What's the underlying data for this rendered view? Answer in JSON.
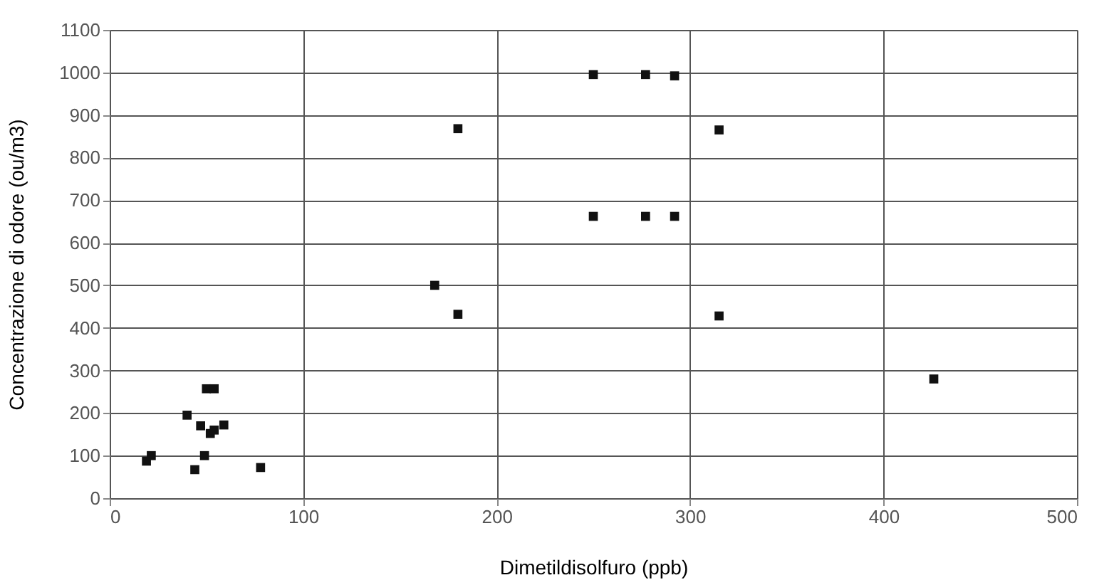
{
  "chart_data": {
    "type": "scatter",
    "xlabel": "Dimetildisolfuro (ppb)",
    "ylabel": "Concentrazione di odore (ou/m3)",
    "x": [
      19,
      21.5,
      40,
      44,
      47,
      49,
      50,
      54,
      52,
      54,
      59,
      78,
      168,
      180,
      180,
      250,
      250,
      277,
      277,
      292,
      292,
      315,
      315,
      426
    ],
    "series": [
      {
        "color": "#111111",
        "values": [
          87,
          100,
          195,
          67,
          170,
          100,
          257,
          257,
          152,
          160,
          172,
          72,
          500,
          432,
          868,
          995,
          662,
          995,
          662,
          992,
          662,
          865,
          428,
          280
        ]
      }
    ],
    "xlim": [
      0,
      500
    ],
    "xticks": [
      0,
      100,
      200,
      300,
      400,
      500
    ],
    "ylim": [
      0,
      1100
    ],
    "yticks": [
      0,
      100,
      200,
      300,
      400,
      500,
      600,
      700,
      800,
      900,
      1000,
      1100
    ],
    "grid": true,
    "marker": "square",
    "legend": false
  }
}
